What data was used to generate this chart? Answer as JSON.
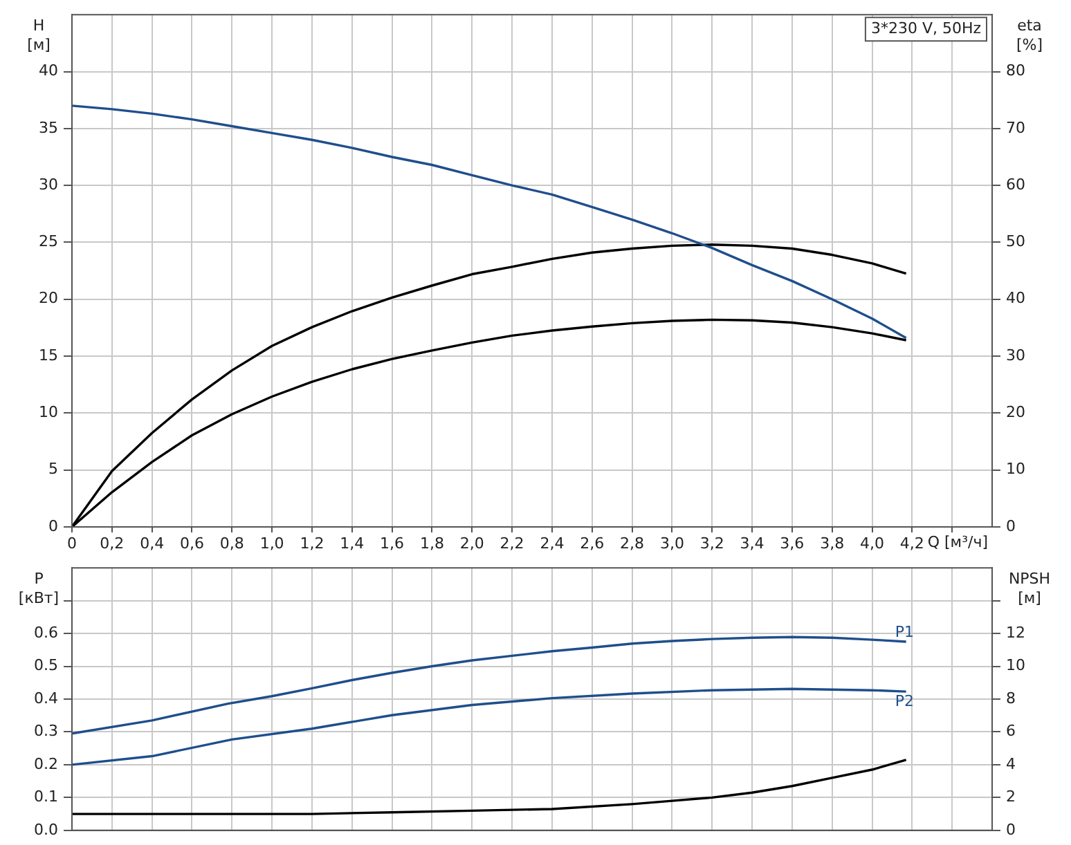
{
  "chart_data": [
    {
      "type": "line",
      "xlabel": "Q [м³/ч]",
      "ylabel": "H [м]",
      "y2label": "eta [%]",
      "annotations": [
        "3*230 V, 50Hz"
      ],
      "xlim": [
        0,
        4.6
      ],
      "xticks": [
        0,
        {
          "value": 0.2,
          "label": "0,2"
        },
        {
          "value": 0.4,
          "label": "0,4"
        },
        {
          "value": 0.6,
          "label": "0,6"
        },
        {
          "value": 0.8,
          "label": "0,8"
        },
        {
          "value": 1,
          "label": "1,0"
        },
        {
          "value": 1.2,
          "label": "1,2"
        },
        {
          "value": 1.4,
          "label": "1,4"
        },
        {
          "value": 1.6,
          "label": "1,6"
        },
        {
          "value": 1.8,
          "label": "1,8"
        },
        {
          "value": 2,
          "label": "2,0"
        },
        {
          "value": 2.2,
          "label": "2,2"
        },
        {
          "value": 2.4,
          "label": "2,4"
        },
        {
          "value": 2.6,
          "label": "2,6"
        },
        {
          "value": 2.8,
          "label": "2,8"
        },
        {
          "value": 3,
          "label": "3,0"
        },
        {
          "value": 3.2,
          "label": "3,2"
        },
        {
          "value": 3.4,
          "label": "3,4"
        },
        {
          "value": 3.6,
          "label": "3,6"
        },
        {
          "value": 3.8,
          "label": "3,8"
        },
        {
          "value": 4,
          "label": "4,0"
        },
        {
          "value": 4.2,
          "label": "4,2"
        },
        {
          "value": 4.4,
          "label": null
        }
      ],
      "ylim": [
        0,
        45
      ],
      "yticks": [
        0,
        5,
        10,
        15,
        20,
        25,
        30,
        35,
        40
      ],
      "y2lim": [
        0,
        90
      ],
      "y2ticks": [
        0,
        10,
        20,
        30,
        40,
        50,
        60,
        70,
        80
      ],
      "grid": true,
      "legend": false,
      "marker": "none",
      "line_style": "solid",
      "series": [
        {
          "color": "#1f4e8c",
          "x": [
            0,
            0.2,
            0.4,
            0.6,
            0.8,
            1,
            1.2,
            1.4,
            1.6,
            1.8,
            2,
            2.2,
            2.4,
            2.6,
            2.8,
            3,
            3.2,
            3.4,
            3.6,
            3.8,
            4,
            4.17
          ],
          "values": [
            37,
            36.7,
            36.3,
            35.8,
            35.2,
            34.6,
            34,
            33.3,
            32.5,
            31.8,
            30.9,
            30,
            29.2,
            28.1,
            27,
            25.8,
            24.5,
            23,
            21.6,
            20,
            18.3,
            16.6
          ]
        },
        {
          "color": "#000000",
          "axis": "y2",
          "x": [
            0,
            0.2,
            0.4,
            0.6,
            0.8,
            1,
            1.2,
            1.4,
            1.6,
            1.8,
            2,
            2.2,
            2.4,
            2.6,
            2.8,
            3,
            3.2,
            3.4,
            3.6,
            3.8,
            4,
            4.17
          ],
          "values": [
            0,
            9.8,
            16.5,
            22.4,
            27.5,
            31.8,
            35.1,
            37.9,
            40.3,
            42.4,
            44.4,
            45.7,
            47.1,
            48.2,
            48.9,
            49.4,
            49.6,
            49.4,
            48.9,
            47.8,
            46.3,
            44.5
          ]
        },
        {
          "color": "#000000",
          "axis": "y2",
          "x": [
            0,
            0.2,
            0.4,
            0.6,
            0.8,
            1,
            1.2,
            1.4,
            1.6,
            1.8,
            2,
            2.2,
            2.4,
            2.6,
            2.8,
            3,
            3.2,
            3.4,
            3.6,
            3.8,
            4,
            4.17
          ],
          "values": [
            0,
            6.1,
            11.4,
            16.1,
            19.8,
            22.9,
            25.5,
            27.7,
            29.5,
            31,
            32.4,
            33.6,
            34.5,
            35.2,
            35.8,
            36.2,
            36.4,
            36.3,
            35.9,
            35.1,
            34,
            32.8
          ]
        }
      ]
    },
    {
      "type": "line",
      "ylabel": "P [кВт]",
      "y2label": "NPSH [м]",
      "xlim": [
        0,
        4.6
      ],
      "xticks": [
        0,
        0.2,
        0.4,
        0.6,
        0.8,
        1,
        1.2,
        1.4,
        1.6,
        1.8,
        2,
        2.2,
        2.4,
        2.6,
        2.8,
        3,
        3.2,
        3.4,
        3.6,
        3.8,
        4,
        4.2,
        4.4
      ],
      "ylim": [
        0,
        0.8
      ],
      "yticks": [
        {
          "value": 0,
          "label": "0.0"
        },
        0.1,
        0.2,
        0.3,
        0.4,
        0.5,
        0.6,
        {
          "value": 0.7,
          "label": null
        }
      ],
      "y2lim": [
        0,
        16
      ],
      "y2ticks": [
        0,
        2,
        4,
        6,
        8,
        10,
        12,
        {
          "value": 14,
          "label": null
        }
      ],
      "tick_labels": "y",
      "grid": true,
      "legend": false,
      "marker": "none",
      "line_style": "solid",
      "series": [
        {
          "name": "P1",
          "color": "#1f4e8c",
          "x": [
            0,
            0.4,
            0.78,
            1,
            1.2,
            1.4,
            1.6,
            1.8,
            2,
            2.2,
            2.4,
            2.6,
            2.8,
            3,
            3.2,
            3.4,
            3.6,
            3.8,
            4,
            4.17
          ],
          "values": [
            0.295,
            0.335,
            0.386,
            0.409,
            0.433,
            0.458,
            0.48,
            0.5,
            0.518,
            0.532,
            0.546,
            0.557,
            0.569,
            0.577,
            0.583,
            0.587,
            0.589,
            0.587,
            0.581,
            0.575
          ]
        },
        {
          "name": "P2",
          "color": "#1f4e8c",
          "x": [
            0,
            0.4,
            0.8,
            1.2,
            1.6,
            2,
            2.4,
            2.8,
            3.2,
            3.6,
            4,
            4.17
          ],
          "values": [
            0.2,
            0.226,
            0.277,
            0.31,
            0.351,
            0.382,
            0.403,
            0.417,
            0.427,
            0.431,
            0.427,
            0.423
          ]
        },
        {
          "color": "#000000",
          "axis": "y2",
          "x": [
            0,
            0.78,
            1.2,
            1.6,
            2,
            2.4,
            2.8,
            3,
            3.2,
            3.4,
            3.6,
            3.8,
            4,
            4.17
          ],
          "values": [
            1,
            1,
            1,
            1.1,
            1.2,
            1.3,
            1.6,
            1.8,
            2,
            2.3,
            2.7,
            3.2,
            3.7,
            4.3
          ]
        }
      ]
    }
  ]
}
